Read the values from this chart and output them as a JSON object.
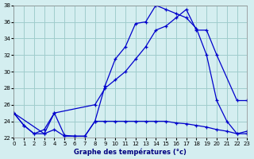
{
  "background_color": "#d4eef0",
  "grid_color": "#a0cccc",
  "line_color": "#0000cc",
  "xlim": [
    0,
    23
  ],
  "ylim": [
    22,
    38
  ],
  "yticks": [
    22,
    24,
    26,
    28,
    30,
    32,
    34,
    36,
    38
  ],
  "xticks": [
    0,
    1,
    2,
    3,
    4,
    5,
    6,
    7,
    8,
    9,
    10,
    11,
    12,
    13,
    14,
    15,
    16,
    17,
    18,
    19,
    20,
    21,
    22,
    23
  ],
  "xlabel": "Graphe des températures (°c)",
  "line1_x": [
    0,
    1,
    2,
    3,
    4,
    5,
    6,
    7,
    8,
    9,
    10,
    11,
    12,
    13,
    14,
    15,
    16,
    17,
    18,
    19,
    20,
    21,
    22,
    23
  ],
  "line1_y": [
    25.0,
    23.5,
    22.5,
    23.0,
    25.0,
    22.3,
    22.2,
    22.2,
    24.0,
    28.3,
    31.5,
    33.0,
    35.8,
    36.0,
    38.0,
    37.5,
    37.0,
    36.5,
    35.2,
    32.0,
    26.5,
    24.0,
    22.5,
    22.8
  ],
  "line2_x": [
    0,
    3,
    4,
    8,
    9,
    10,
    11,
    12,
    13,
    14,
    15,
    16,
    17,
    18,
    19,
    20,
    22,
    23
  ],
  "line2_y": [
    25.0,
    22.5,
    25.0,
    26.0,
    28.0,
    29.0,
    30.0,
    31.5,
    33.0,
    35.0,
    35.5,
    36.5,
    37.5,
    35.0,
    35.0,
    32.0,
    26.5,
    26.5
  ],
  "line3_x": [
    0,
    1,
    2,
    3,
    4,
    5,
    6,
    7,
    8,
    9,
    10,
    11,
    12,
    13,
    14,
    15,
    16,
    17,
    18,
    19,
    20,
    21,
    22,
    23
  ],
  "line3_y": [
    25.0,
    23.5,
    22.5,
    22.5,
    23.0,
    22.2,
    22.2,
    22.2,
    24.0,
    24.0,
    24.0,
    24.0,
    24.0,
    24.0,
    24.0,
    24.0,
    23.8,
    23.7,
    23.5,
    23.3,
    23.0,
    22.8,
    22.5,
    22.5
  ]
}
